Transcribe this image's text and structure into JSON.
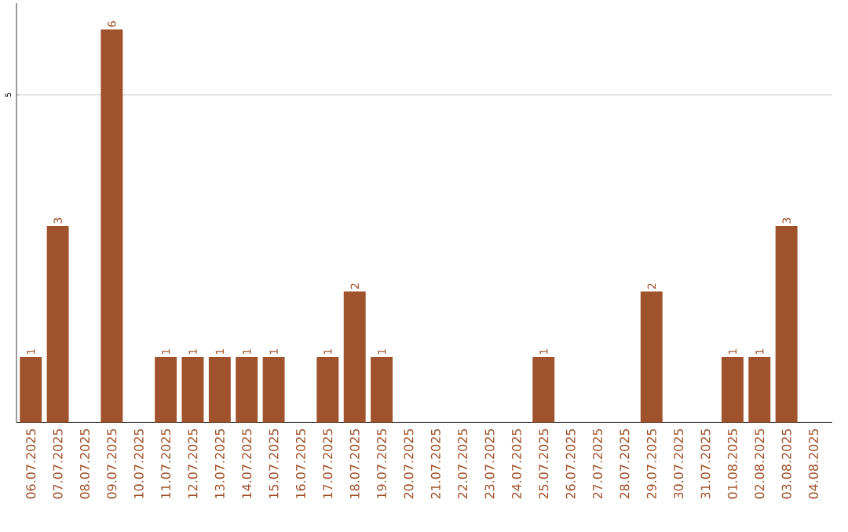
{
  "chart_data": {
    "type": "bar",
    "categories": [
      "06.07.2025",
      "07.07.2025",
      "08.07.2025",
      "09.07.2025",
      "10.07.2025",
      "11.07.2025",
      "12.07.2025",
      "13.07.2025",
      "14.07.2025",
      "15.07.2025",
      "16.07.2025",
      "17.07.2025",
      "18.07.2025",
      "19.07.2025",
      "20.07.2025",
      "21.07.2025",
      "22.07.2025",
      "23.07.2025",
      "24.07.2025",
      "25.07.2025",
      "26.07.2025",
      "27.07.2025",
      "28.07.2025",
      "29.07.2025",
      "30.07.2025",
      "31.07.2025",
      "01.08.2025",
      "02.08.2025",
      "03.08.2025",
      "04.08.2025"
    ],
    "values": [
      1,
      3,
      0,
      6,
      0,
      1,
      1,
      1,
      1,
      1,
      0,
      1,
      2,
      1,
      0,
      0,
      0,
      0,
      0,
      1,
      0,
      0,
      0,
      2,
      0,
      0,
      1,
      1,
      3,
      0
    ],
    "value_labels": [
      "1",
      "3",
      null,
      "6",
      null,
      "1",
      "1",
      "1",
      "1",
      "1",
      null,
      "1",
      "2",
      "1",
      null,
      null,
      null,
      null,
      null,
      "1",
      null,
      null,
      null,
      "2",
      null,
      null,
      "1",
      "1",
      "3",
      null
    ],
    "color": "#a0522d",
    "ylim": [
      0,
      6.4
    ],
    "yticks": [
      5
    ],
    "grid": "y"
  }
}
